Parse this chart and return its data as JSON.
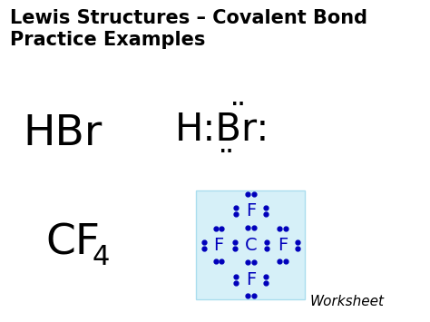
{
  "title_line1": "Lewis Structures – Covalent Bond",
  "title_line2": "Practice Examples",
  "title_fontsize": 15,
  "title_color": "#000000",
  "bg_color": "#ffffff",
  "hbr_label": "HBr",
  "lewis_color_hbr": "#000000",
  "lewis_color_cf4": "#0000bb",
  "box_color": "#d6f0f8",
  "worksheet_fontsize": 11
}
